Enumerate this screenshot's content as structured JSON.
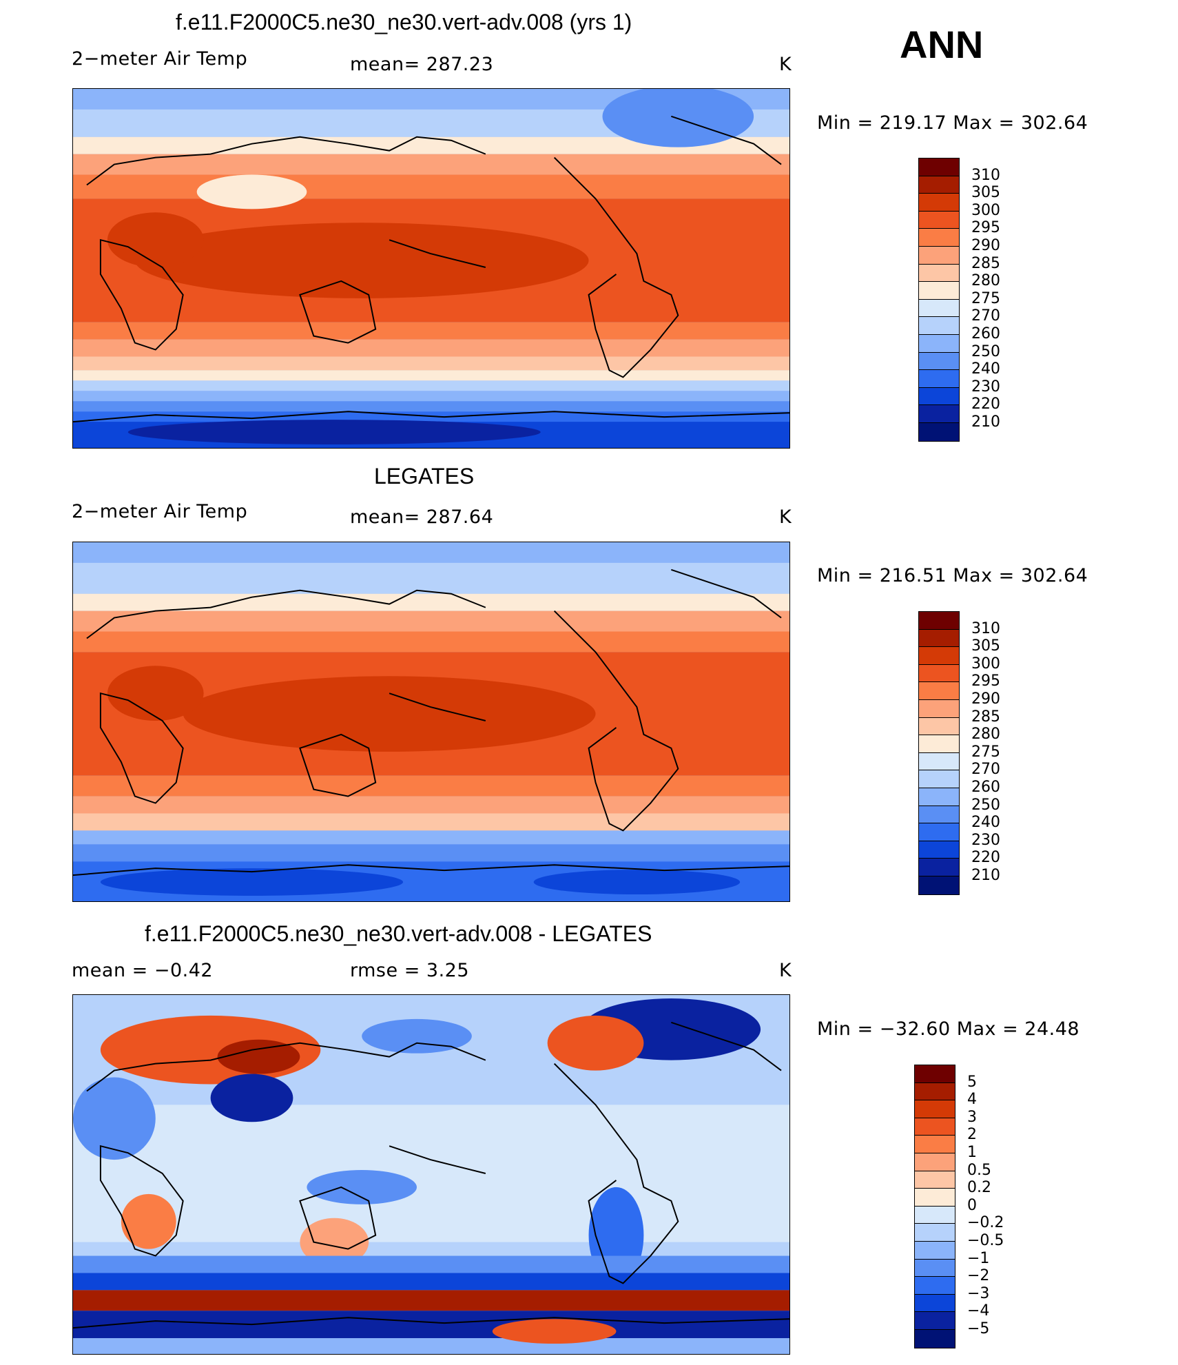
{
  "header": {
    "case_title": "f.e11.F2000C5.ne30_ne30.vert-adv.008 (yrs 1)",
    "season": "ANN"
  },
  "panels": [
    {
      "title": "",
      "variable": "2−meter Air Temp",
      "stat": "mean=  287.23",
      "units": "K",
      "minmax": "Min  =  219.17  Max  =  302.64",
      "levels": [
        "310",
        "305",
        "300",
        "295",
        "290",
        "285",
        "280",
        "275",
        "270",
        "260",
        "250",
        "240",
        "230",
        "220",
        "210"
      ]
    },
    {
      "title": "LEGATES",
      "variable": "2−meter Air Temp",
      "stat": "mean=  287.64",
      "units": "K",
      "minmax": "Min  =  216.51  Max  =  302.64",
      "levels": [
        "310",
        "305",
        "300",
        "295",
        "290",
        "285",
        "280",
        "275",
        "270",
        "260",
        "250",
        "240",
        "230",
        "220",
        "210"
      ]
    },
    {
      "title": "f.e11.F2000C5.ne30_ne30.vert-adv.008 - LEGATES",
      "variable": "mean  =     −0.42",
      "stat": "rmse  =      3.25",
      "units": "K",
      "minmax": "Min  =  −32.60  Max  =    24.48",
      "levels": [
        "5",
        "4",
        "3",
        "2",
        "1",
        "0.5",
        "0.2",
        "0",
        "−0.2",
        "−0.5",
        "−1",
        "−2",
        "−3",
        "−4",
        "−5"
      ]
    }
  ],
  "colors": {
    "temp_scale": [
      "#6e0000",
      "#a51d00",
      "#d43a06",
      "#ec5420",
      "#fa7d45",
      "#fca27a",
      "#fdc6a6",
      "#fdebd7",
      "#d7e8fa",
      "#b6d2fb",
      "#8bb4fa",
      "#5a8ff4",
      "#2e6cf0",
      "#0c45d9",
      "#0a22a0",
      "#001275"
    ],
    "diff_scale": [
      "#6e0000",
      "#a51d00",
      "#d43a06",
      "#ec5420",
      "#fa7d45",
      "#fca27a",
      "#fdc6a6",
      "#fdebd7",
      "#d7e8fa",
      "#b6d2fb",
      "#8bb4fa",
      "#5a8ff4",
      "#2e6cf0",
      "#0c45d9",
      "#0a22a0",
      "#001275"
    ]
  }
}
